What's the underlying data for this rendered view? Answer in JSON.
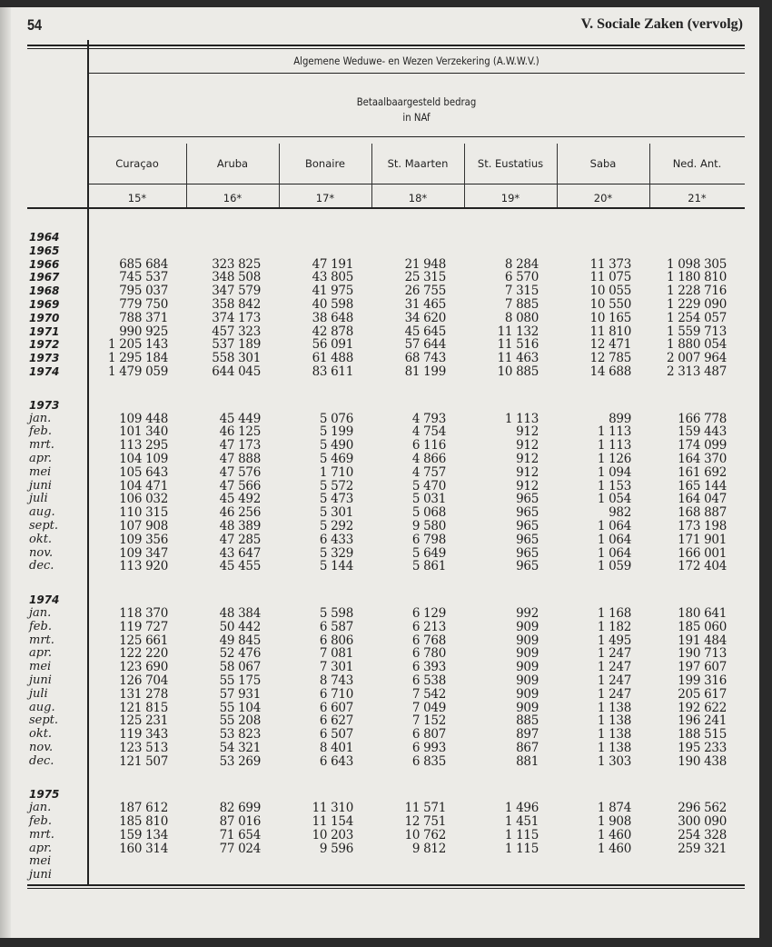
{
  "page_number": "54",
  "running_head": "V. Sociale Zaken (vervolg)",
  "table": {
    "title": "Algemene Weduwe- en Wezen Verzekering (A.W.W.V.)",
    "subtitle_line1": "Betaalbaargesteld bedrag",
    "subtitle_line2": "in NAf",
    "columns": [
      {
        "name": "Curaçao",
        "code": "15*"
      },
      {
        "name": "Aruba",
        "code": "16*"
      },
      {
        "name": "Bonaire",
        "code": "17*"
      },
      {
        "name": "St. Maarten",
        "code": "18*"
      },
      {
        "name": "St. Eustatius",
        "code": "19*"
      },
      {
        "name": "Saba",
        "code": "20*"
      },
      {
        "name": "Ned. Ant.",
        "code": "21*"
      }
    ],
    "groups": [
      {
        "heading": "",
        "rows": [
          {
            "label": "1964",
            "values": [
              "",
              "",
              "",
              "",
              "",
              "",
              ""
            ]
          },
          {
            "label": "1965",
            "values": [
              "",
              "",
              "",
              "",
              "",
              "",
              ""
            ]
          },
          {
            "label": "1966",
            "values": [
              "685 684",
              "323 825",
              "47 191",
              "21 948",
              "8 284",
              "11 373",
              "1 098 305"
            ]
          },
          {
            "label": "1967",
            "values": [
              "745 537",
              "348 508",
              "43 805",
              "25 315",
              "6 570",
              "11 075",
              "1 180 810"
            ]
          },
          {
            "label": "1968",
            "values": [
              "795 037",
              "347 579",
              "41 975",
              "26 755",
              "7 315",
              "10 055",
              "1 228 716"
            ]
          },
          {
            "label": "1969",
            "values": [
              "779 750",
              "358 842",
              "40 598",
              "31 465",
              "7 885",
              "10 550",
              "1 229 090"
            ]
          },
          {
            "label": "1970",
            "values": [
              "788 371",
              "374 173",
              "38 648",
              "34 620",
              "8 080",
              "10 165",
              "1 254 057"
            ]
          },
          {
            "label": "1971",
            "values": [
              "990 925",
              "457 323",
              "42 878",
              "45 645",
              "11 132",
              "11 810",
              "1 559 713"
            ]
          },
          {
            "label": "1972",
            "values": [
              "1 205 143",
              "537 189",
              "56 091",
              "57 644",
              "11 516",
              "12 471",
              "1 880 054"
            ]
          },
          {
            "label": "1973",
            "values": [
              "1 295 184",
              "558 301",
              "61 488",
              "68 743",
              "11 463",
              "12 785",
              "2 007 964"
            ]
          },
          {
            "label": "1974",
            "values": [
              "1 479 059",
              "644 045",
              "83 611",
              "81 199",
              "10 885",
              "14 688",
              "2 313 487"
            ]
          }
        ]
      },
      {
        "heading": "1973",
        "rows": [
          {
            "label": "jan.",
            "values": [
              "109 448",
              "45 449",
              "5 076",
              "4 793",
              "1 113",
              "899",
              "166 778"
            ]
          },
          {
            "label": "feb.",
            "values": [
              "101 340",
              "46 125",
              "5 199",
              "4 754",
              "912",
              "1 113",
              "159 443"
            ]
          },
          {
            "label": "mrt.",
            "values": [
              "113 295",
              "47 173",
              "5 490",
              "6 116",
              "912",
              "1 113",
              "174 099"
            ]
          },
          {
            "label": "apr.",
            "values": [
              "104 109",
              "47 888",
              "5 469",
              "4 866",
              "912",
              "1 126",
              "164 370"
            ]
          },
          {
            "label": "mei",
            "values": [
              "105 643",
              "47 576",
              "1 710",
              "4 757",
              "912",
              "1 094",
              "161 692"
            ]
          },
          {
            "label": "juni",
            "values": [
              "104 471",
              "47 566",
              "5 572",
              "5 470",
              "912",
              "1 153",
              "165 144"
            ]
          },
          {
            "label": "juli",
            "values": [
              "106 032",
              "45 492",
              "5 473",
              "5 031",
              "965",
              "1 054",
              "164 047"
            ]
          },
          {
            "label": "aug.",
            "values": [
              "110 315",
              "46 256",
              "5 301",
              "5 068",
              "965",
              "982",
              "168 887"
            ]
          },
          {
            "label": "sept.",
            "values": [
              "107 908",
              "48 389",
              "5 292",
              "9 580",
              "965",
              "1 064",
              "173 198"
            ]
          },
          {
            "label": "okt.",
            "values": [
              "109 356",
              "47 285",
              "6 433",
              "6 798",
              "965",
              "1 064",
              "171 901"
            ]
          },
          {
            "label": "nov.",
            "values": [
              "109 347",
              "43 647",
              "5 329",
              "5 649",
              "965",
              "1 064",
              "166 001"
            ]
          },
          {
            "label": "dec.",
            "values": [
              "113 920",
              "45 455",
              "5 144",
              "5 861",
              "965",
              "1 059",
              "172 404"
            ]
          }
        ]
      },
      {
        "heading": "1974",
        "rows": [
          {
            "label": "jan.",
            "values": [
              "118 370",
              "48 384",
              "5 598",
              "6 129",
              "992",
              "1 168",
              "180 641"
            ]
          },
          {
            "label": "feb.",
            "values": [
              "119 727",
              "50 442",
              "6 587",
              "6 213",
              "909",
              "1 182",
              "185 060"
            ]
          },
          {
            "label": "mrt.",
            "values": [
              "125 661",
              "49 845",
              "6 806",
              "6 768",
              "909",
              "1 495",
              "191 484"
            ]
          },
          {
            "label": "apr.",
            "values": [
              "122 220",
              "52 476",
              "7 081",
              "6 780",
              "909",
              "1 247",
              "190 713"
            ]
          },
          {
            "label": "mei",
            "values": [
              "123 690",
              "58 067",
              "7 301",
              "6 393",
              "909",
              "1 247",
              "197 607"
            ]
          },
          {
            "label": "juni",
            "values": [
              "126 704",
              "55 175",
              "8 743",
              "6 538",
              "909",
              "1 247",
              "199 316"
            ]
          },
          {
            "label": "juli",
            "values": [
              "131 278",
              "57 931",
              "6 710",
              "7 542",
              "909",
              "1 247",
              "205 617"
            ]
          },
          {
            "label": "aug.",
            "values": [
              "121 815",
              "55 104",
              "6 607",
              "7 049",
              "909",
              "1 138",
              "192 622"
            ]
          },
          {
            "label": "sept.",
            "values": [
              "125 231",
              "55 208",
              "6 627",
              "7 152",
              "885",
              "1 138",
              "196 241"
            ]
          },
          {
            "label": "okt.",
            "values": [
              "119 343",
              "53 823",
              "6 507",
              "6 807",
              "897",
              "1 138",
              "188 515"
            ]
          },
          {
            "label": "nov.",
            "values": [
              "123 513",
              "54 321",
              "8 401",
              "6 993",
              "867",
              "1 138",
              "195 233"
            ]
          },
          {
            "label": "dec.",
            "values": [
              "121 507",
              "53 269",
              "6 643",
              "6 835",
              "881",
              "1 303",
              "190 438"
            ]
          }
        ]
      },
      {
        "heading": "1975",
        "rows": [
          {
            "label": "jan.",
            "values": [
              "187 612",
              "82 699",
              "11 310",
              "11 571",
              "1 496",
              "1 874",
              "296 562"
            ]
          },
          {
            "label": "feb.",
            "values": [
              "185 810",
              "87 016",
              "11 154",
              "12 751",
              "1 451",
              "1 908",
              "300 090"
            ]
          },
          {
            "label": "mrt.",
            "values": [
              "159 134",
              "71 654",
              "10 203",
              "10 762",
              "1 115",
              "1 460",
              "254 328"
            ]
          },
          {
            "label": "apr.",
            "values": [
              "160 314",
              "77 024",
              "9 596",
              "9 812",
              "1 115",
              "1 460",
              "259 321"
            ]
          },
          {
            "label": "mei",
            "values": [
              "",
              "",
              "",
              "",
              "",
              "",
              ""
            ]
          },
          {
            "label": "juni",
            "values": [
              "",
              "",
              "",
              "",
              "",
              "",
              ""
            ]
          }
        ]
      }
    ]
  }
}
